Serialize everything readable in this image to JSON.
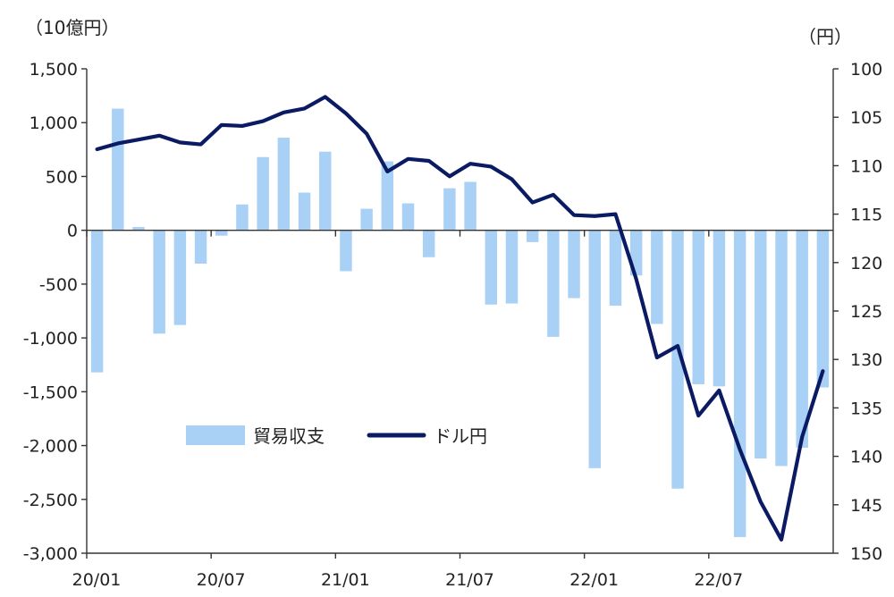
{
  "chart_data": {
    "type": "bar+line",
    "left_axis_unit": "（10億円）",
    "right_axis_unit": "（円）",
    "left_axis": {
      "ylim": [
        -3000,
        1500
      ],
      "ticks": [
        1500,
        1000,
        500,
        0,
        -500,
        -1000,
        -1500,
        -2000,
        -2500,
        -3000
      ],
      "tick_labels": [
        "1,500",
        "1,000",
        "500",
        "0",
        "-500",
        "-1,000",
        "-1,500",
        "-2,000",
        "-2,500",
        "-3,000"
      ],
      "negative_tick_color": "#c0392b"
    },
    "right_axis": {
      "ylim": [
        100,
        150
      ],
      "inverted": true,
      "ticks": [
        100,
        105,
        110,
        115,
        120,
        125,
        130,
        135,
        140,
        145,
        150
      ],
      "tick_labels": [
        "100",
        "105",
        "110",
        "115",
        "120",
        "125",
        "130",
        "135",
        "140",
        "145",
        "150"
      ]
    },
    "x_tick_labels": [
      {
        "index": 0,
        "label": "20/01"
      },
      {
        "index": 6,
        "label": "20/07"
      },
      {
        "index": 12,
        "label": "21/01"
      },
      {
        "index": 18,
        "label": "21/07"
      },
      {
        "index": 24,
        "label": "22/01"
      },
      {
        "index": 30,
        "label": "22/07"
      }
    ],
    "series": [
      {
        "name": "貿易収支",
        "type": "bar",
        "axis": "left",
        "color": "#a9d0f5",
        "values": [
          -1320,
          1130,
          30,
          -960,
          -880,
          -310,
          -50,
          240,
          680,
          860,
          350,
          730,
          -380,
          200,
          640,
          250,
          -250,
          390,
          450,
          -690,
          -680,
          -110,
          -990,
          -630,
          -2210,
          -700,
          -420,
          -870,
          -2400,
          -1430,
          -1450,
          -2850,
          -2120,
          -2190,
          -2020,
          -1460
        ]
      },
      {
        "name": "ドル円",
        "type": "line",
        "axis": "right",
        "color": "#0a1b63",
        "values": [
          108.3,
          107.7,
          107.3,
          106.9,
          107.6,
          107.8,
          105.8,
          105.9,
          105.4,
          104.5,
          104.1,
          102.9,
          104.6,
          106.7,
          110.6,
          109.3,
          109.5,
          111.1,
          109.8,
          110.1,
          111.4,
          113.8,
          113.0,
          115.1,
          115.2,
          115.0,
          121.7,
          129.8,
          128.6,
          135.8,
          133.2,
          139.3,
          144.7,
          148.6,
          138.0,
          131.2
        ]
      }
    ],
    "legend": {
      "placement": "lower-left",
      "items": [
        {
          "label": "貿易収支",
          "kind": "bar",
          "color": "#a9d0f5"
        },
        {
          "label": "ドル円",
          "kind": "line",
          "color": "#0a1b63"
        }
      ]
    }
  }
}
